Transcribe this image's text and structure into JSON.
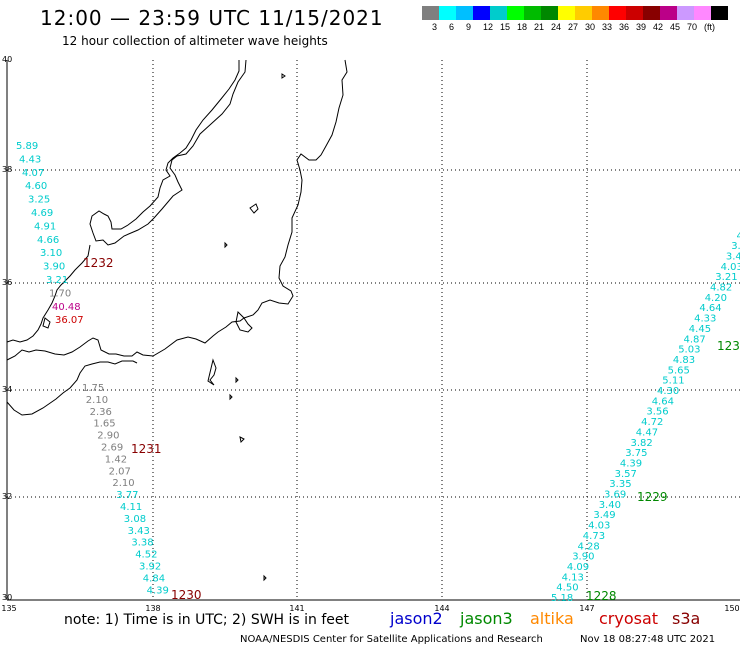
{
  "header": {
    "title": "12:00 — 23:59 UTC 11/15/2021",
    "subtitle": "12 hour collection of altimeter wave heights"
  },
  "colorbar": {
    "colors": [
      "#7f7f7f",
      "#00ffff",
      "#00bfff",
      "#0000ff",
      "#00cccc",
      "#00ff00",
      "#00bb00",
      "#008800",
      "#ffff00",
      "#ffcc00",
      "#ff8800",
      "#ff0000",
      "#cc0000",
      "#880000",
      "#bb0088",
      "#cc99ff",
      "#ff88ff",
      "#000000"
    ],
    "labels": [
      "3",
      "6",
      "9",
      "12",
      "15",
      "18",
      "21",
      "24",
      "27",
      "30",
      "33",
      "36",
      "39",
      "42",
      "45",
      "70",
      "(ft)"
    ]
  },
  "axes": {
    "lat_labels": [
      "40",
      "38",
      "36",
      "34",
      "32",
      "30"
    ],
    "lon_labels": [
      "135",
      "138",
      "141",
      "144",
      "147",
      "150"
    ]
  },
  "passes": [
    {
      "time": "1232",
      "color": "#880000"
    },
    {
      "time": "1231",
      "color": "#880000"
    },
    {
      "time": "1230",
      "color": "#880000"
    },
    {
      "time": "1229",
      "color": "#008800"
    },
    {
      "time": "1228",
      "color": "#008800"
    },
    {
      "time": "123",
      "color": "#008800"
    }
  ],
  "west_track": [
    {
      "v": "5.89",
      "c": "#00cccc"
    },
    {
      "v": "4.43",
      "c": "#00cccc"
    },
    {
      "v": "4.07",
      "c": "#00cccc"
    },
    {
      "v": "4.60",
      "c": "#00cccc"
    },
    {
      "v": "3.25",
      "c": "#00cccc"
    },
    {
      "v": "4.69",
      "c": "#00cccc"
    },
    {
      "v": "4.91",
      "c": "#00cccc"
    },
    {
      "v": "4.66",
      "c": "#00cccc"
    },
    {
      "v": "3.10",
      "c": "#00cccc"
    },
    {
      "v": "3.90",
      "c": "#00cccc"
    },
    {
      "v": "3.21",
      "c": "#00cccc"
    },
    {
      "v": "1.70",
      "c": "#7f7f7f"
    },
    {
      "v": "40.48",
      "c": "#bb0088"
    },
    {
      "v": "36.07",
      "c": "#cc0000"
    },
    {
      "v": "1.75",
      "c": "#7f7f7f"
    },
    {
      "v": "2.10",
      "c": "#7f7f7f"
    },
    {
      "v": "2.36",
      "c": "#7f7f7f"
    },
    {
      "v": "1.65",
      "c": "#7f7f7f"
    },
    {
      "v": "2.90",
      "c": "#7f7f7f"
    },
    {
      "v": "2.69",
      "c": "#7f7f7f"
    },
    {
      "v": "1.42",
      "c": "#7f7f7f"
    },
    {
      "v": "2.07",
      "c": "#7f7f7f"
    },
    {
      "v": "2.10",
      "c": "#7f7f7f"
    },
    {
      "v": "3.77",
      "c": "#00cccc"
    },
    {
      "v": "4.11",
      "c": "#00cccc"
    },
    {
      "v": "3.08",
      "c": "#00cccc"
    },
    {
      "v": "3.43",
      "c": "#00cccc"
    },
    {
      "v": "3.38",
      "c": "#00cccc"
    },
    {
      "v": "4.52",
      "c": "#00cccc"
    },
    {
      "v": "3.92",
      "c": "#00cccc"
    },
    {
      "v": "4.84",
      "c": "#00cccc"
    },
    {
      "v": "4.39",
      "c": "#00cccc"
    }
  ],
  "east_track": [
    {
      "v": "5.18",
      "c": "#00cccc"
    },
    {
      "v": "4.50",
      "c": "#00cccc"
    },
    {
      "v": "4.13",
      "c": "#00cccc"
    },
    {
      "v": "4.09",
      "c": "#00cccc"
    },
    {
      "v": "3.90",
      "c": "#00cccc"
    },
    {
      "v": "4.28",
      "c": "#00cccc"
    },
    {
      "v": "4.73",
      "c": "#00cccc"
    },
    {
      "v": "4.03",
      "c": "#00cccc"
    },
    {
      "v": "3.49",
      "c": "#00cccc"
    },
    {
      "v": "3.40",
      "c": "#00cccc"
    },
    {
      "v": "3.69",
      "c": "#00cccc"
    },
    {
      "v": "3.35",
      "c": "#00cccc"
    },
    {
      "v": "3.57",
      "c": "#00cccc"
    },
    {
      "v": "4.39",
      "c": "#00cccc"
    },
    {
      "v": "3.75",
      "c": "#00cccc"
    },
    {
      "v": "3.82",
      "c": "#00cccc"
    },
    {
      "v": "4.47",
      "c": "#00cccc"
    },
    {
      "v": "4.72",
      "c": "#00cccc"
    },
    {
      "v": "3.56",
      "c": "#00cccc"
    },
    {
      "v": "4.64",
      "c": "#00cccc"
    },
    {
      "v": "4.30",
      "c": "#00cccc"
    },
    {
      "v": "5.11",
      "c": "#00cccc"
    },
    {
      "v": "5.65",
      "c": "#00cccc"
    },
    {
      "v": "4.83",
      "c": "#00cccc"
    },
    {
      "v": "5.03",
      "c": "#00cccc"
    },
    {
      "v": "4.87",
      "c": "#00cccc"
    },
    {
      "v": "4.45",
      "c": "#00cccc"
    },
    {
      "v": "4.33",
      "c": "#00cccc"
    },
    {
      "v": "4.64",
      "c": "#00cccc"
    },
    {
      "v": "4.20",
      "c": "#00cccc"
    },
    {
      "v": "4.82",
      "c": "#00cccc"
    },
    {
      "v": "3.21",
      "c": "#00cccc"
    },
    {
      "v": "4.03",
      "c": "#00cccc"
    },
    {
      "v": "3.4",
      "c": "#00cccc"
    },
    {
      "v": "3.",
      "c": "#00cccc"
    },
    {
      "v": "4",
      "c": "#00cccc"
    }
  ],
  "footer": {
    "note": "note: 1) Time is in UTC; 2) SWH is in feet",
    "satellites": [
      {
        "name": "jason2",
        "color": "#0000cc"
      },
      {
        "name": "jason3",
        "color": "#008800"
      },
      {
        "name": "altika",
        "color": "#ff8800"
      },
      {
        "name": "cryosat",
        "color": "#cc0000"
      },
      {
        "name": "s3a",
        "color": "#880000"
      }
    ],
    "credit": "NOAA/NESDIS Center for Satellite Applications and Research",
    "timestamp": "Nov 18 08:27:48 UTC 2021"
  }
}
